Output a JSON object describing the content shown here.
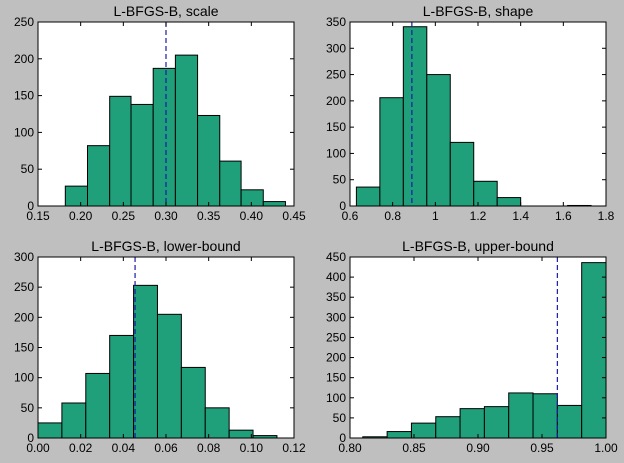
{
  "chart_data": [
    {
      "type": "histogram",
      "title": "L-BFGS-B, scale",
      "bins": [
        0.182,
        0.208,
        0.234,
        0.259,
        0.285,
        0.311,
        0.337,
        0.363,
        0.388,
        0.414,
        0.44
      ],
      "values": [
        27,
        82,
        149,
        138,
        187,
        205,
        123,
        61,
        22,
        6
      ],
      "color": "#20a07a",
      "reference_line": 0.3,
      "xlim": [
        0.15,
        0.45
      ],
      "xticks": [
        0.15,
        {
          "value": 0.2,
          "label": "0.20"
        },
        0.25,
        {
          "value": 0.3,
          "label": "0.30"
        },
        0.35,
        {
          "value": 0.4,
          "label": "0.40"
        },
        0.45
      ],
      "ylim": [
        0,
        250
      ],
      "yticks": [
        0,
        50,
        100,
        150,
        200,
        250
      ]
    },
    {
      "type": "histogram",
      "title": "L-BFGS-B, shape",
      "bins": [
        0.63,
        0.74,
        0.85,
        0.96,
        1.07,
        1.18,
        1.29,
        1.4,
        1.51,
        1.62,
        1.73
      ],
      "values": [
        36,
        206,
        341,
        250,
        121,
        47,
        16,
        0,
        0,
        1
      ],
      "color": "#20a07a",
      "reference_line": 0.89,
      "xlim": [
        0.6,
        1.8
      ],
      "xticks": [
        0.6,
        0.8,
        1,
        1.2,
        1.4,
        1.6,
        1.8
      ],
      "ylim": [
        0,
        350
      ],
      "yticks": [
        0,
        50,
        100,
        150,
        200,
        250,
        300,
        350
      ]
    },
    {
      "type": "histogram",
      "title": "L-BFGS-B, lower-bound",
      "bins": [
        0.0,
        0.0112,
        0.0224,
        0.0336,
        0.0448,
        0.056,
        0.0672,
        0.0784,
        0.0896,
        0.1008,
        0.112
      ],
      "values": [
        25,
        58,
        107,
        170,
        253,
        205,
        117,
        50,
        13,
        4
      ],
      "color": "#20a07a",
      "reference_line": 0.0455,
      "xlim": [
        0,
        0.12
      ],
      "xticks": [
        {
          "value": 0,
          "label": "0.00"
        },
        0.02,
        0.04,
        0.06,
        0.08,
        {
          "value": 0.1,
          "label": "0.10"
        },
        0.12
      ],
      "ylim": [
        0,
        300
      ],
      "yticks": [
        0,
        50,
        100,
        150,
        200,
        250,
        300
      ]
    },
    {
      "type": "histogram",
      "title": "L-BFGS-B, upper-bound",
      "bins": [
        0.81,
        0.829,
        0.848,
        0.867,
        0.886,
        0.905,
        0.924,
        0.943,
        0.962,
        0.981,
        1.0
      ],
      "values": [
        3,
        16,
        37,
        53,
        73,
        78,
        112,
        110,
        81,
        436
      ],
      "color": "#20a07a",
      "reference_line": 0.962,
      "xlim": [
        0.8,
        1.0
      ],
      "xticks": [
        {
          "value": 0.8,
          "label": "0.80"
        },
        0.85,
        {
          "value": 0.9,
          "label": "0.90"
        },
        0.95,
        {
          "value": 1,
          "label": "1.00"
        }
      ],
      "ylim": [
        0,
        450
      ],
      "yticks": [
        0,
        50,
        100,
        150,
        200,
        250,
        300,
        350,
        400,
        450
      ]
    }
  ]
}
